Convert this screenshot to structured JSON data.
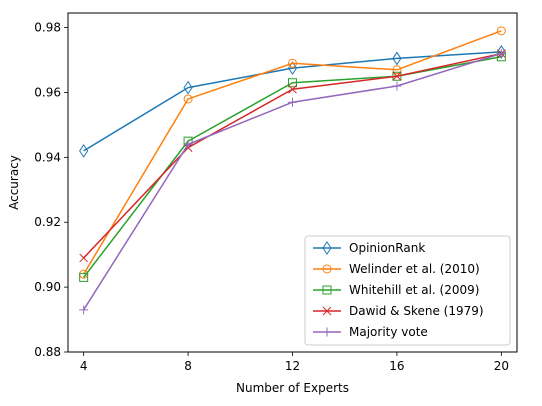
{
  "chart_data": {
    "type": "line",
    "title": "",
    "xlabel": "Number of Experts",
    "ylabel": "Accuracy",
    "x": [
      4,
      8,
      12,
      16,
      20
    ],
    "x_ticks": [
      "4",
      "8",
      "12",
      "16",
      "20"
    ],
    "y_ticks": [
      "0.88",
      "0.90",
      "0.92",
      "0.94",
      "0.96",
      "0.98"
    ],
    "xlim": [
      3.4,
      20.6
    ],
    "ylim": [
      0.88,
      0.9845
    ],
    "grid": false,
    "legend_position": "lower-right",
    "series": [
      {
        "name": "OpinionRank",
        "color": "#1f77b4",
        "marker": "thin-diamond",
        "values": [
          0.942,
          0.9615,
          0.9675,
          0.9705,
          0.9725
        ]
      },
      {
        "name": "Welinder et al. (2010)",
        "color": "#ff7f0e",
        "marker": "circle",
        "values": [
          0.904,
          0.958,
          0.969,
          0.967,
          0.979
        ]
      },
      {
        "name": "Whitehill et al. (2009)",
        "color": "#2ca02c",
        "marker": "square",
        "values": [
          0.903,
          0.945,
          0.963,
          0.965,
          0.971
        ]
      },
      {
        "name": "Dawid & Skene (1979)",
        "color": "#d62728",
        "marker": "x",
        "values": [
          0.909,
          0.943,
          0.961,
          0.965,
          0.972
        ]
      },
      {
        "name": "Majority vote",
        "color": "#9467bd",
        "marker": "plus",
        "values": [
          0.893,
          0.944,
          0.957,
          0.962,
          0.972
        ]
      }
    ]
  }
}
